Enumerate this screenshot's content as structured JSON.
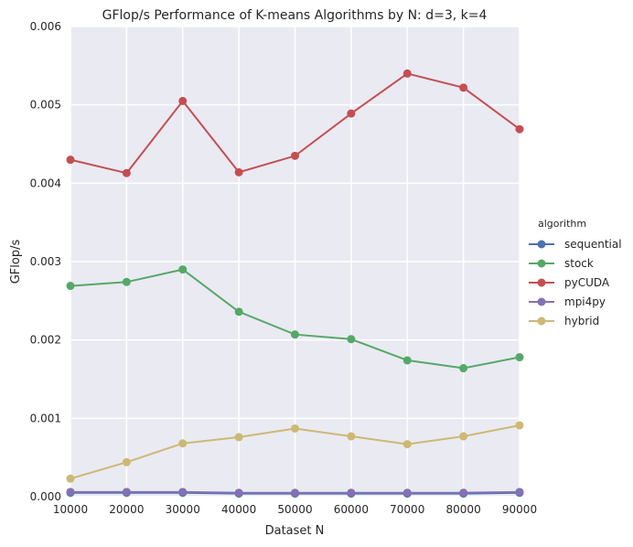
{
  "chart_data": {
    "type": "line",
    "title": "GFlop/s Performance of K-means Algorithms by N: d=3, k=4",
    "xlabel": "Dataset N",
    "ylabel": "GFlop/s",
    "x": [
      10000,
      20000,
      30000,
      40000,
      50000,
      60000,
      70000,
      80000,
      90000
    ],
    "x_tick_labels": [
      "10000",
      "20000",
      "30000",
      "40000",
      "50000",
      "60000",
      "70000",
      "80000",
      "90000"
    ],
    "ylim": [
      0,
      0.006
    ],
    "y_ticks": [
      0,
      0.001,
      0.002,
      0.003,
      0.004,
      0.005,
      0.006
    ],
    "y_tick_labels": [
      "0.000",
      "0.001",
      "0.002",
      "0.003",
      "0.004",
      "0.005",
      "0.006"
    ],
    "grid": true,
    "legend": {
      "title": "algorithm",
      "position": "right"
    },
    "series": [
      {
        "name": "sequential",
        "color": "#4c72b0",
        "values": [
          5e-05,
          5e-05,
          5e-05,
          4e-05,
          4e-05,
          4e-05,
          4e-05,
          4e-05,
          5e-05
        ]
      },
      {
        "name": "stock",
        "color": "#55a868",
        "values": [
          0.00269,
          0.00274,
          0.0029,
          0.00236,
          0.00207,
          0.00201,
          0.00174,
          0.00164,
          0.00178
        ]
      },
      {
        "name": "pyCUDA",
        "color": "#c44e52",
        "values": [
          0.0043,
          0.00413,
          0.00505,
          0.00414,
          0.00435,
          0.00489,
          0.0054,
          0.00522,
          0.00469
        ]
      },
      {
        "name": "mpi4py",
        "color": "#8172b2",
        "values": [
          6e-05,
          6e-05,
          6e-05,
          5e-05,
          5e-05,
          5e-05,
          5e-05,
          5e-05,
          6e-05
        ]
      },
      {
        "name": "hybrid",
        "color": "#ccb974",
        "values": [
          0.00023,
          0.00044,
          0.00068,
          0.00076,
          0.00087,
          0.00077,
          0.00067,
          0.00077,
          0.00091
        ]
      }
    ]
  }
}
